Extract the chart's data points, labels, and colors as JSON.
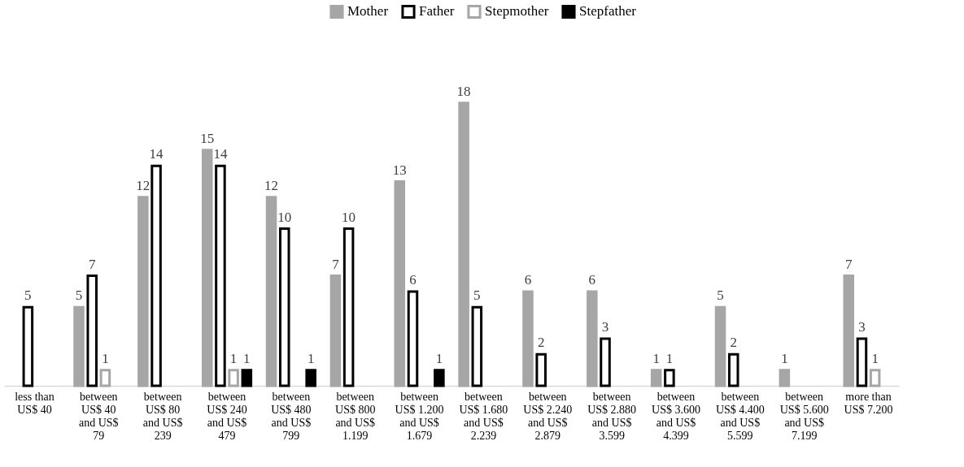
{
  "chart_data": {
    "type": "bar",
    "categories": [
      "less than US$ 40",
      "between US$ 40 and US$ 79",
      "between US$ 80 and US$ 239",
      "between US$ 240 and US$ 479",
      "between US$ 480 and US$ 799",
      "between US$ 800 and US$ 1.199",
      "between US$ 1.200 and US$ 1.679",
      "between US$ 1.680 and US$ 2.239",
      "between US$ 2.240 and US$ 2.879",
      "between US$ 2.880 and US$ 3.599",
      "between US$ 3.600 and US$ 4.399",
      "between US$ 4.400 and US$ 5.599",
      "between US$ 5.600 and US$ 7.199",
      "more than US$ 7.200"
    ],
    "series": [
      {
        "name": "Mother",
        "color": "#a6a6a6",
        "values": [
          null,
          5,
          12,
          15,
          12,
          7,
          13,
          18,
          6,
          6,
          1,
          5,
          1,
          7
        ]
      },
      {
        "name": "Father",
        "color": "#000000",
        "values": [
          5,
          7,
          14,
          14,
          10,
          10,
          6,
          5,
          2,
          3,
          1,
          2,
          null,
          3
        ]
      },
      {
        "name": "Stepmother",
        "color": "#a6a6a6",
        "values": [
          null,
          1,
          null,
          1,
          null,
          null,
          null,
          null,
          null,
          null,
          null,
          null,
          null,
          1
        ]
      },
      {
        "name": "Stepfather",
        "color": "#000000",
        "values": [
          null,
          null,
          null,
          1,
          1,
          null,
          1,
          null,
          null,
          null,
          null,
          null,
          null,
          null
        ]
      }
    ],
    "data_labels": true,
    "legend": "top",
    "grid": false
  }
}
